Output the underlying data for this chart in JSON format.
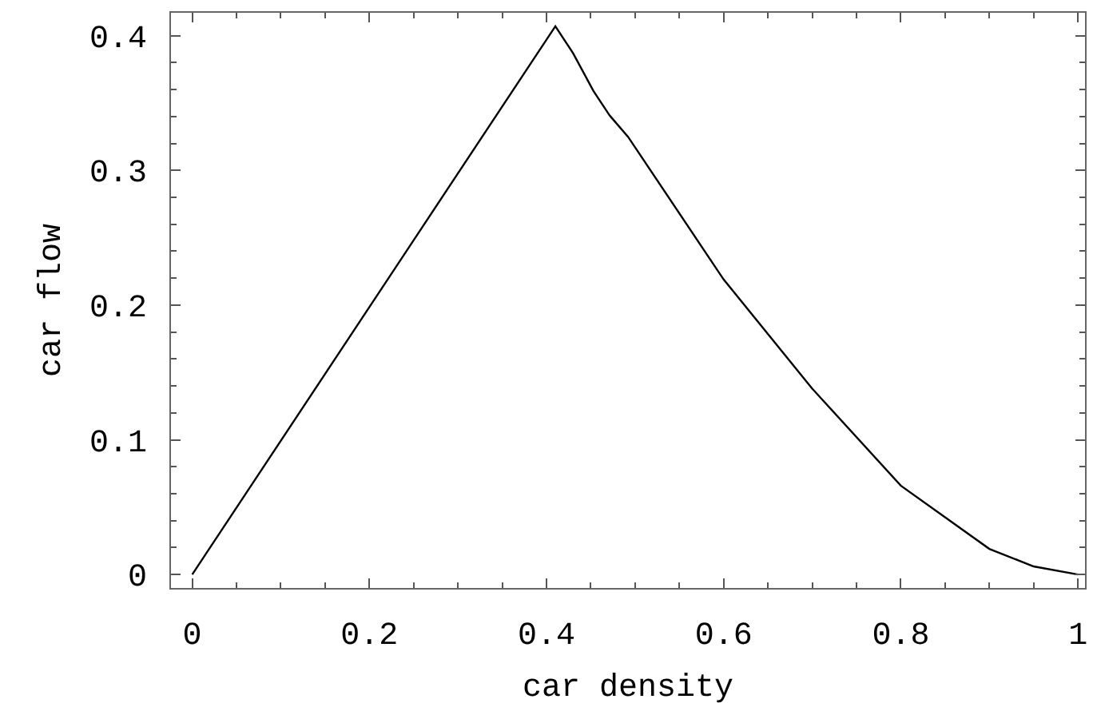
{
  "chart_data": {
    "type": "line",
    "xlabel": "car density",
    "ylabel": "car flow",
    "x": [
      0,
      0.41,
      0.43,
      0.453,
      0.471,
      0.492,
      0.6,
      0.7,
      0.8,
      0.9,
      0.95,
      1
    ],
    "series": [
      {
        "color": "#000000",
        "values": [
          0,
          0.407,
          0.387,
          0.359,
          0.341,
          0.325,
          0.219,
          0.138,
          0.066,
          0.019,
          0.006,
          0
        ]
      }
    ],
    "xlim": [
      -0.024,
      1.008
    ],
    "ylim": [
      -0.01,
      0.417
    ],
    "xticks": [
      0,
      {
        "value": 0.05,
        "label": null
      },
      {
        "value": 0.1,
        "label": null
      },
      {
        "value": 0.15,
        "label": null
      },
      0.2,
      {
        "value": 0.25,
        "label": null
      },
      {
        "value": 0.3,
        "label": null
      },
      {
        "value": 0.35,
        "label": null
      },
      0.4,
      {
        "value": 0.45,
        "label": null
      },
      {
        "value": 0.5,
        "label": null
      },
      {
        "value": 0.55,
        "label": null
      },
      0.6,
      {
        "value": 0.65,
        "label": null
      },
      {
        "value": 0.7,
        "label": null
      },
      {
        "value": 0.75,
        "label": null
      },
      0.8,
      {
        "value": 0.85,
        "label": null
      },
      {
        "value": 0.9,
        "label": null
      },
      {
        "value": 0.95,
        "label": null
      },
      1
    ],
    "yticks": [
      0,
      {
        "value": 0.02,
        "label": null
      },
      {
        "value": 0.04,
        "label": null
      },
      {
        "value": 0.06,
        "label": null
      },
      {
        "value": 0.08,
        "label": null
      },
      0.1,
      {
        "value": 0.12,
        "label": null
      },
      {
        "value": 0.14,
        "label": null
      },
      {
        "value": 0.16,
        "label": null
      },
      {
        "value": 0.18,
        "label": null
      },
      0.2,
      {
        "value": 0.22,
        "label": null
      },
      {
        "value": 0.24,
        "label": null
      },
      {
        "value": 0.26,
        "label": null
      },
      {
        "value": 0.28,
        "label": null
      },
      0.3,
      {
        "value": 0.32,
        "label": null
      },
      {
        "value": 0.34,
        "label": null
      },
      {
        "value": 0.36,
        "label": null
      },
      {
        "value": 0.38,
        "label": null
      },
      0.4
    ],
    "grid": false,
    "marker": "none",
    "line_style": "solid"
  }
}
